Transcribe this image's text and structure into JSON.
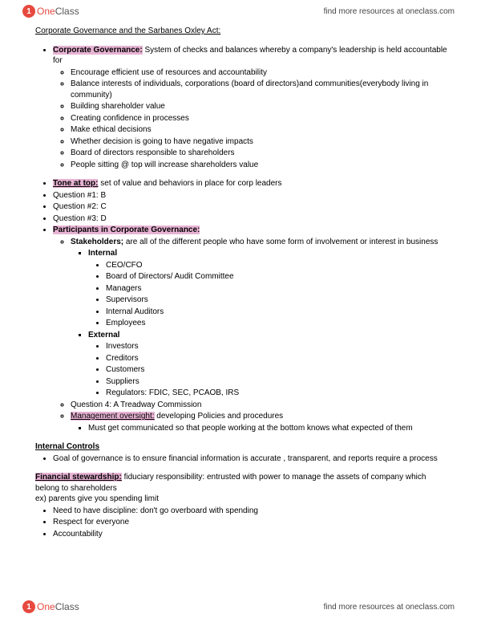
{
  "logo": {
    "badge": "1",
    "one": "One",
    "class_": "Class"
  },
  "resources": "find more resources at oneclass.com",
  "title": "Corporate Governance and the Sarbanes Oxley Act:",
  "corpGov": {
    "heading": "Corporate Governance:",
    "def": " System of checks and balances whereby a company's leadership is held accountable for",
    "subs": [
      "Encourage efficient use of resources and accountability",
      "Balance interests of individuals, corporations (board of directors)and communities(everybody living in community)",
      "Building shareholder value",
      "Creating confidence in processes",
      "Make ethical decisions",
      "Whether decision is going to have negative impacts",
      "Board of directors responsible to shareholders",
      "People sitting @ top will increase shareholders value"
    ]
  },
  "tone": {
    "heading": "Tone at top:",
    "def": "  set of value and behaviors in place for corp leaders"
  },
  "q1": "Question #1: B",
  "q2": "Question #2: C",
  "q3": "Question #3: D",
  "participants": {
    "heading": "Participants in Corporate Governance:",
    "stakeLabel": "Stakeholders;",
    "stakeDef": " are all of the different people who have some form of involvement or interest in business",
    "internalLabel": "Internal",
    "internal": [
      "CEO/CFO",
      "Board of Directors/ Audit Committee",
      "Managers",
      "Supervisors",
      "Internal Auditors",
      "Employees"
    ],
    "externalLabel": "External",
    "external": [
      "Investors",
      "Creditors",
      "Customers",
      "Suppliers",
      "Regulators: FDIC, SEC, PCAOB, IRS"
    ],
    "q4": "Question 4: A Treadway Commission",
    "mgmtHeading": "Management oversight:",
    "mgmtDef": " developing  Policies and procedures",
    "mgmtSub": "Must get communicated so that people working at the bottom knows what expected of them"
  },
  "internalControls": {
    "heading": "Internal Controls",
    "item": "Goal of governance is to ensure financial information is accurate , transparent, and reports require a process"
  },
  "finSteward": {
    "heading": "Financial stewardship:",
    "def": " fiduciary responsibility: entrusted with power to manage the assets of company which belong to shareholders",
    "ex": "ex)  parents give you spending limit",
    "items": [
      "Need to have discipline:  don't go overboard with spending",
      "Respect for everyone",
      "Accountability"
    ]
  },
  "colors": {
    "highlight": "#e7b3d3",
    "brand": "#e7493f"
  }
}
